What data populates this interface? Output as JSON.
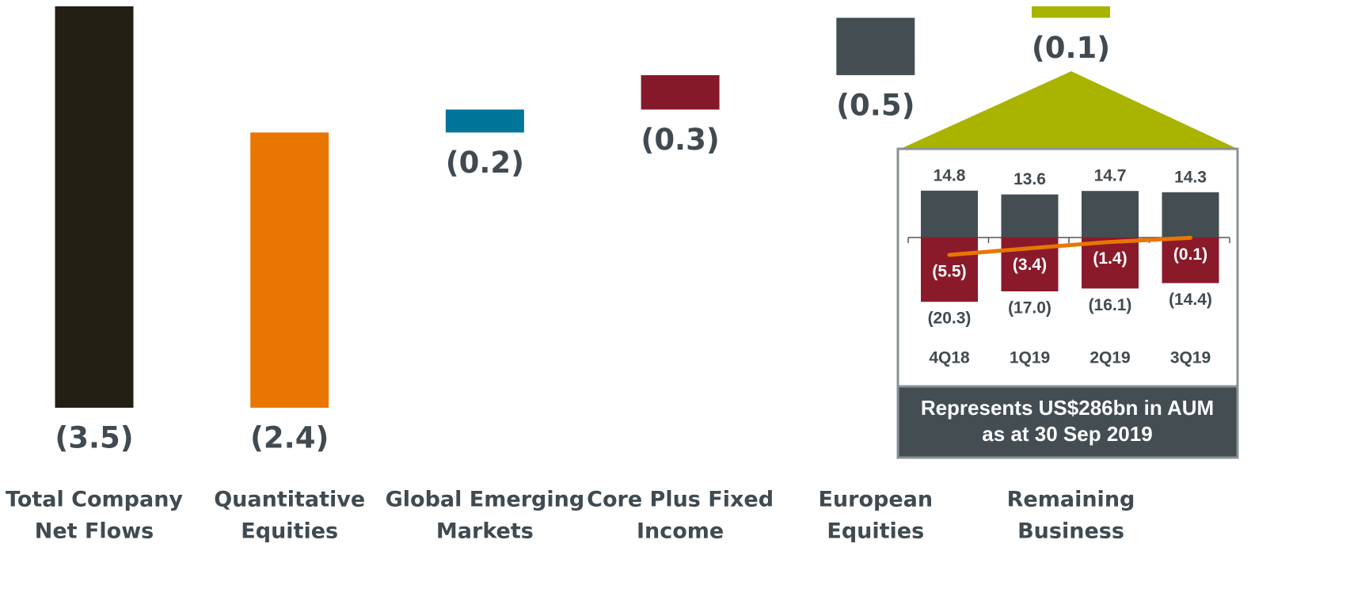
{
  "chart_data": [
    {
      "type": "waterfall",
      "categories": [
        [
          "Total Company",
          "Net Flows"
        ],
        [
          "Quantitative",
          "Equities"
        ],
        [
          "Global Emerging",
          "Markets"
        ],
        [
          "Core Plus Fixed",
          "Income"
        ],
        [
          "European",
          "Equities"
        ],
        [
          "Remaining",
          "Business"
        ]
      ],
      "values": [
        -3.5,
        -2.4,
        -0.2,
        -0.3,
        -0.5,
        -0.1
      ],
      "value_labels": [
        "(3.5)",
        "(2.4)",
        "(0.2)",
        "(0.3)",
        "(0.5)",
        "(0.1)"
      ],
      "colors": [
        "#231f14",
        "#e97600",
        "#00759a",
        "#85192a",
        "#434d52",
        "#a9b400"
      ],
      "ylim": [
        -3.5,
        0
      ]
    },
    {
      "type": "bar",
      "categories": [
        "4Q18",
        "1Q19",
        "2Q19",
        "3Q19"
      ],
      "series": [
        {
          "color": "#434d52",
          "values": [
            14.8,
            13.6,
            14.7,
            14.3
          ],
          "value_labels": [
            "14.8",
            "13.6",
            "14.7",
            "14.3"
          ]
        },
        {
          "color": "#8a1a2a",
          "values": [
            -20.3,
            -17.0,
            -16.1,
            -14.4
          ],
          "value_labels": [
            "(20.3)",
            "(17.0)",
            "(16.1)",
            "(14.4)"
          ]
        },
        {
          "type": "line",
          "color": "#e97600",
          "values": [
            -5.5,
            -3.4,
            -1.4,
            -0.1
          ],
          "value_labels": [
            "(5.5)",
            "(3.4)",
            "(1.4)",
            "(0.1)"
          ]
        }
      ],
      "ylim": [
        -21,
        15
      ],
      "caption": [
        "Represents US$286bn in AUM",
        "as at 30 Sep 2019"
      ]
    }
  ]
}
